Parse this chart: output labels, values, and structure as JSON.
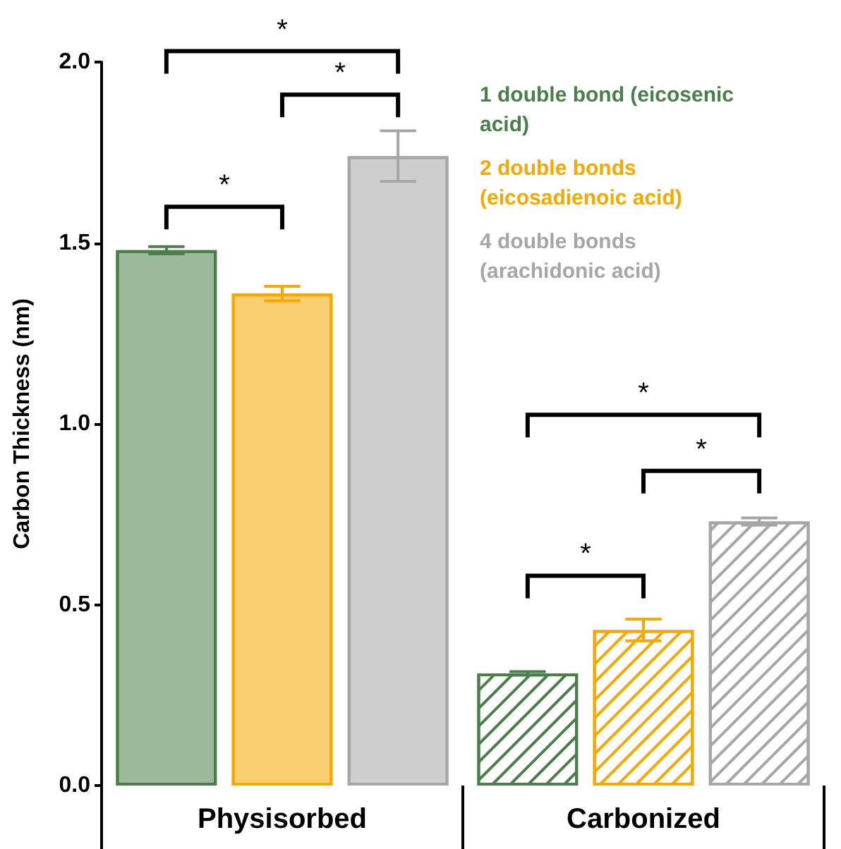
{
  "chart_data": {
    "type": "bar",
    "ylabel": "Carbon Thickness (nm)",
    "categories": [
      "Physisorbed",
      "Carbonized"
    ],
    "series": [
      {
        "name": "1 double bond (eicosenic acid)",
        "color": "#4a7f4a",
        "values": [
          1.48,
          0.31
        ],
        "errors": [
          0.01,
          0.005
        ]
      },
      {
        "name": "2 double bonds (eicosadienoic acid)",
        "color": "#f5a800",
        "values": [
          1.36,
          0.43
        ],
        "errors": [
          0.02,
          0.03
        ]
      },
      {
        "name": "4 double bonds (arachidonic acid)",
        "color": "#a6a6a6",
        "values": [
          1.74,
          0.73
        ],
        "errors": [
          0.07,
          0.01
        ]
      }
    ],
    "ylim": [
      0,
      2.0
    ],
    "yticks": [
      {
        "value": 0,
        "label": "0.0"
      },
      {
        "value": 0.5,
        "label": "0.5"
      },
      {
        "value": 1,
        "label": "1.0"
      },
      {
        "value": 1.5,
        "label": "1.5"
      },
      {
        "value": 2,
        "label": "2.0"
      }
    ],
    "grid": false,
    "legend": "top right",
    "annotations": [
      "*",
      "*",
      "*",
      "*",
      "*",
      "*"
    ]
  }
}
